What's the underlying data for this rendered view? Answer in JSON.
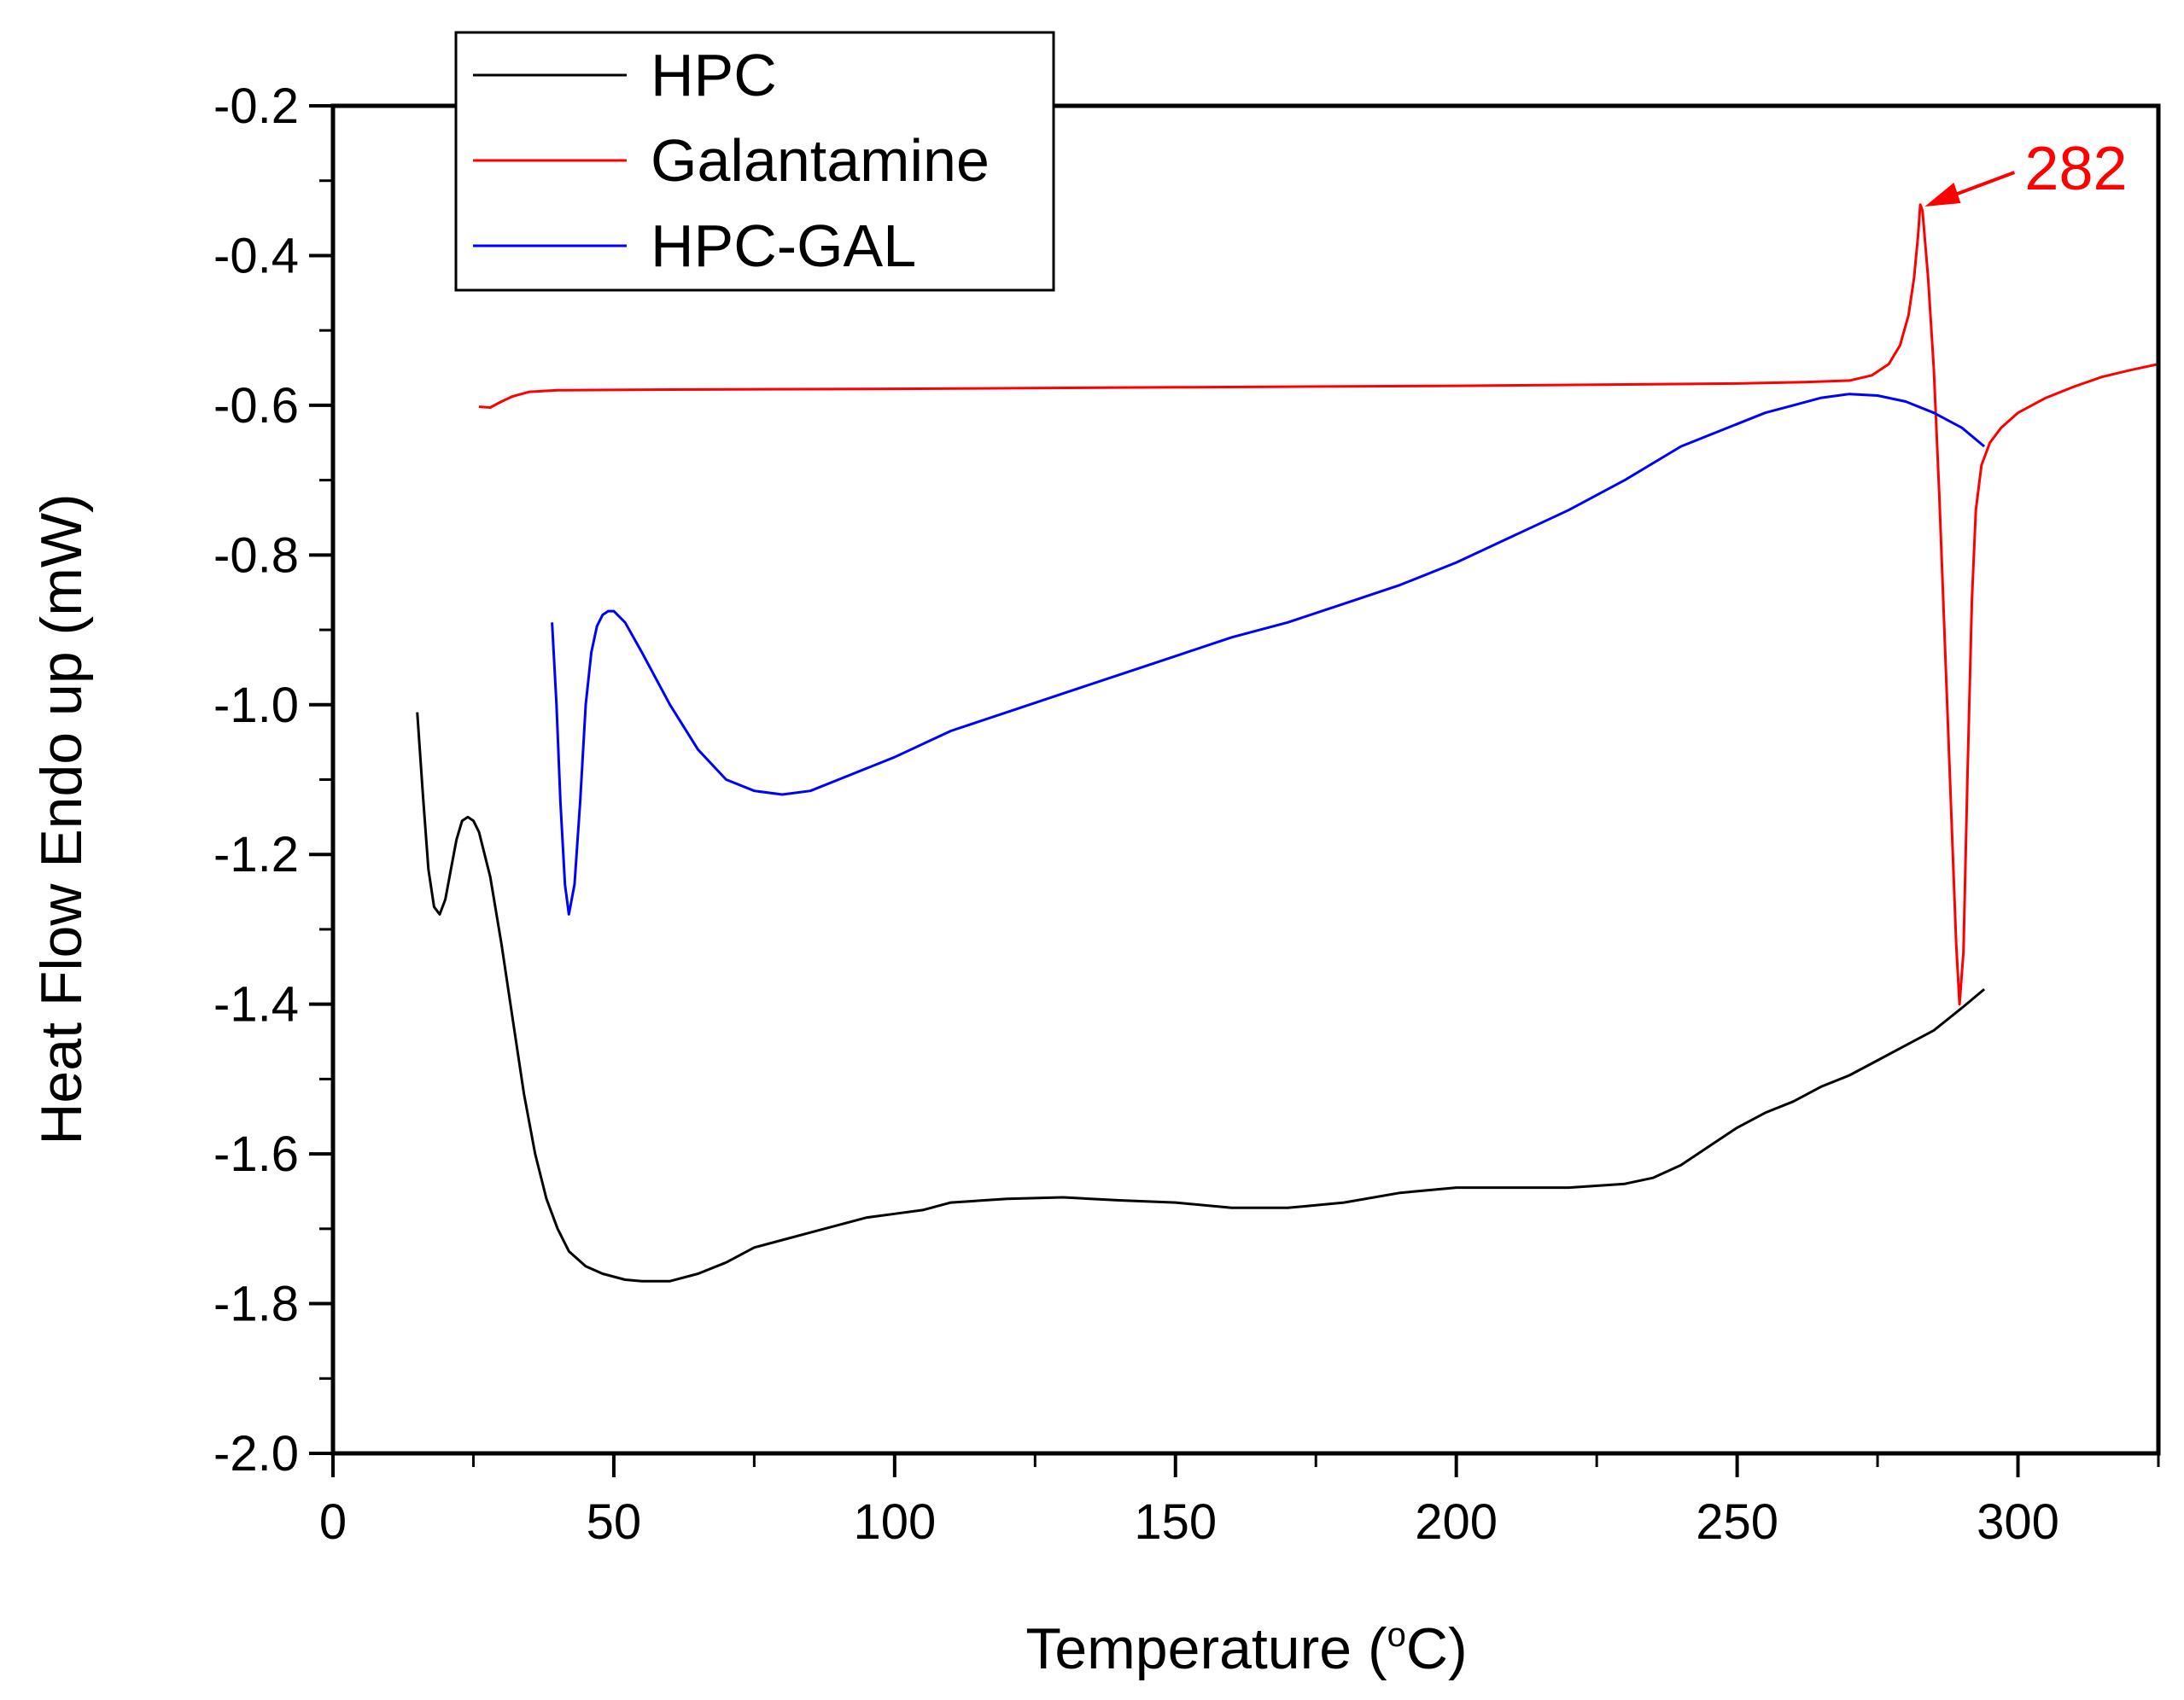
{
  "chart_data": {
    "type": "line",
    "title": "",
    "xlabel": "Temperature (°C)",
    "xlabel_main": "Temperature (",
    "xlabel_degree": "o",
    "xlabel_tail": "C)",
    "ylabel": "Heat Flow Endo up (mW)",
    "xlim": [
      0,
      325
    ],
    "ylim": [
      -2.0,
      -0.2
    ],
    "x_ticks": [
      0,
      50,
      100,
      150,
      200,
      250,
      300
    ],
    "x_tick_labels": [
      "0",
      "50",
      "100",
      "150",
      "200",
      "250",
      "300"
    ],
    "y_ticks": [
      -2.0,
      -1.8,
      -1.6,
      -1.4,
      -1.2,
      -1.0,
      -0.8,
      -0.6,
      -0.4,
      -0.2
    ],
    "y_tick_labels": [
      "-2.0",
      "-1.8",
      "-1.6",
      "-1.4",
      "-1.2",
      "-1.0",
      "-0.8",
      "-0.6",
      "-0.4",
      "-0.2"
    ],
    "grid": false,
    "legend_position": "top-left",
    "series": [
      {
        "name": "HPC",
        "color": "#000000",
        "points": [
          [
            15,
            -1.01
          ],
          [
            16,
            -1.12
          ],
          [
            17,
            -1.22
          ],
          [
            18,
            -1.27
          ],
          [
            19,
            -1.28
          ],
          [
            20,
            -1.26
          ],
          [
            21,
            -1.22
          ],
          [
            22,
            -1.18
          ],
          [
            23,
            -1.155
          ],
          [
            24,
            -1.15
          ],
          [
            25,
            -1.155
          ],
          [
            26,
            -1.17
          ],
          [
            28,
            -1.23
          ],
          [
            30,
            -1.32
          ],
          [
            32,
            -1.42
          ],
          [
            34,
            -1.52
          ],
          [
            36,
            -1.6
          ],
          [
            38,
            -1.66
          ],
          [
            40,
            -1.7
          ],
          [
            42,
            -1.73
          ],
          [
            45,
            -1.75
          ],
          [
            48,
            -1.76
          ],
          [
            52,
            -1.768
          ],
          [
            55,
            -1.77
          ],
          [
            60,
            -1.77
          ],
          [
            65,
            -1.76
          ],
          [
            70,
            -1.745
          ],
          [
            75,
            -1.725
          ],
          [
            80,
            -1.715
          ],
          [
            85,
            -1.705
          ],
          [
            90,
            -1.695
          ],
          [
            95,
            -1.685
          ],
          [
            100,
            -1.68
          ],
          [
            105,
            -1.675
          ],
          [
            110,
            -1.665
          ],
          [
            120,
            -1.66
          ],
          [
            130,
            -1.658
          ],
          [
            140,
            -1.662
          ],
          [
            150,
            -1.665
          ],
          [
            160,
            -1.672
          ],
          [
            170,
            -1.672
          ],
          [
            180,
            -1.665
          ],
          [
            190,
            -1.652
          ],
          [
            200,
            -1.645
          ],
          [
            210,
            -1.645
          ],
          [
            220,
            -1.645
          ],
          [
            230,
            -1.64
          ],
          [
            235,
            -1.632
          ],
          [
            240,
            -1.615
          ],
          [
            245,
            -1.59
          ],
          [
            250,
            -1.565
          ],
          [
            255,
            -1.545
          ],
          [
            260,
            -1.53
          ],
          [
            265,
            -1.51
          ],
          [
            270,
            -1.495
          ],
          [
            275,
            -1.475
          ],
          [
            280,
            -1.455
          ],
          [
            285,
            -1.435
          ],
          [
            290,
            -1.405
          ],
          [
            294,
            -1.38
          ]
        ]
      },
      {
        "name": "Galantamine",
        "color": "#ff0000",
        "points": [
          [
            26,
            -0.602
          ],
          [
            28,
            -0.603
          ],
          [
            30,
            -0.595
          ],
          [
            32,
            -0.588
          ],
          [
            35,
            -0.582
          ],
          [
            40,
            -0.58
          ],
          [
            60,
            -0.579
          ],
          [
            100,
            -0.578
          ],
          [
            150,
            -0.576
          ],
          [
            200,
            -0.574
          ],
          [
            250,
            -0.571
          ],
          [
            262,
            -0.569
          ],
          [
            270,
            -0.567
          ],
          [
            274,
            -0.56
          ],
          [
            277,
            -0.545
          ],
          [
            279,
            -0.52
          ],
          [
            280.5,
            -0.48
          ],
          [
            281.5,
            -0.43
          ],
          [
            282.2,
            -0.375
          ],
          [
            282.6,
            -0.332
          ],
          [
            283,
            -0.34
          ],
          [
            284,
            -0.43
          ],
          [
            285,
            -0.55
          ],
          [
            286,
            -0.72
          ],
          [
            287,
            -0.92
          ],
          [
            288,
            -1.12
          ],
          [
            289,
            -1.32
          ],
          [
            289.6,
            -1.4
          ],
          [
            290.3,
            -1.33
          ],
          [
            291,
            -1.1
          ],
          [
            291.8,
            -0.86
          ],
          [
            292.5,
            -0.74
          ],
          [
            293.5,
            -0.68
          ],
          [
            295,
            -0.65
          ],
          [
            297,
            -0.63
          ],
          [
            300,
            -0.61
          ],
          [
            305,
            -0.59
          ],
          [
            310,
            -0.575
          ],
          [
            315,
            -0.562
          ],
          [
            320,
            -0.553
          ],
          [
            325,
            -0.545
          ]
        ]
      },
      {
        "name": "HPC-GAL",
        "color": "#0000ff",
        "points": [
          [
            39,
            -0.89
          ],
          [
            39.8,
            -1.0
          ],
          [
            40.5,
            -1.13
          ],
          [
            41.3,
            -1.24
          ],
          [
            42,
            -1.28
          ],
          [
            43,
            -1.24
          ],
          [
            44,
            -1.13
          ],
          [
            45,
            -1.0
          ],
          [
            46,
            -0.93
          ],
          [
            47,
            -0.895
          ],
          [
            48,
            -0.88
          ],
          [
            49,
            -0.875
          ],
          [
            50,
            -0.875
          ],
          [
            52,
            -0.89
          ],
          [
            55,
            -0.93
          ],
          [
            60,
            -1.0
          ],
          [
            65,
            -1.06
          ],
          [
            70,
            -1.1
          ],
          [
            75,
            -1.115
          ],
          [
            80,
            -1.12
          ],
          [
            85,
            -1.115
          ],
          [
            90,
            -1.1
          ],
          [
            100,
            -1.07
          ],
          [
            110,
            -1.035
          ],
          [
            120,
            -1.01
          ],
          [
            130,
            -0.985
          ],
          [
            140,
            -0.96
          ],
          [
            150,
            -0.935
          ],
          [
            160,
            -0.91
          ],
          [
            170,
            -0.89
          ],
          [
            180,
            -0.865
          ],
          [
            190,
            -0.84
          ],
          [
            200,
            -0.81
          ],
          [
            210,
            -0.775
          ],
          [
            220,
            -0.74
          ],
          [
            230,
            -0.7
          ],
          [
            240,
            -0.655
          ],
          [
            250,
            -0.625
          ],
          [
            255,
            -0.61
          ],
          [
            260,
            -0.6
          ],
          [
            265,
            -0.59
          ],
          [
            270,
            -0.585
          ],
          [
            275,
            -0.587
          ],
          [
            280,
            -0.595
          ],
          [
            285,
            -0.61
          ],
          [
            290,
            -0.63
          ],
          [
            294,
            -0.655
          ]
        ]
      }
    ],
    "annotations": [
      {
        "text": "282",
        "x": 282.5,
        "y": -0.33,
        "color": "#ff0000"
      }
    ]
  }
}
